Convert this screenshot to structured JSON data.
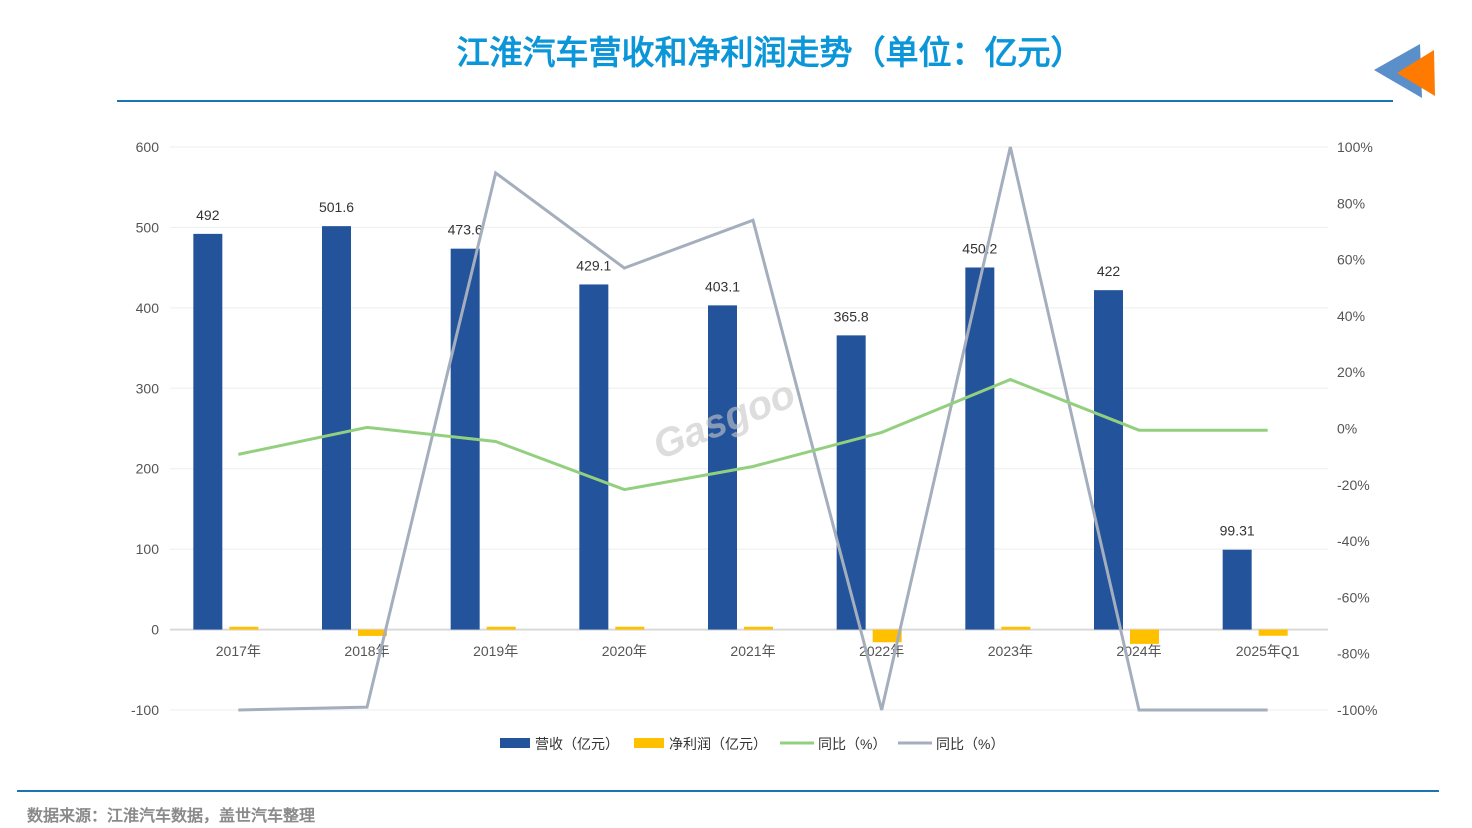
{
  "title": "江淮汽车营收和净利润走势（单位：亿元）",
  "source": "数据来源：江淮汽车数据，盖世汽车整理",
  "watermark": "盖世汽车 Gasgoo auto.gasgoo.com",
  "chart_data": {
    "type": "bar+line",
    "categories": [
      "2017年",
      "2018年",
      "2019年",
      "2020年",
      "2021年",
      "2022年",
      "2023年",
      "2024年",
      "2025年Q1"
    ],
    "y_left": {
      "ylim": [
        -100,
        600
      ],
      "ticks": [
        600,
        500,
        400,
        300,
        200,
        100,
        0,
        -100
      ]
    },
    "y_right": {
      "ylim": [
        -100,
        100
      ],
      "ticks": [
        "100%",
        "80%",
        "60%",
        "40%",
        "20%",
        "0%",
        "-20%",
        "-40%",
        "-60%",
        "-80%",
        "-100%"
      ]
    },
    "grid": true,
    "legend_position": "bottom",
    "series": [
      {
        "name": "营收（亿元）",
        "type": "bar",
        "axis": "left",
        "color": "#23539b",
        "values": [
          492,
          501.6,
          473.6,
          429.1,
          403.1,
          365.8,
          450.2,
          422,
          99.31
        ],
        "labels": [
          "492",
          "501.6",
          "473.6",
          "429.1",
          "403.1",
          "365.8",
          "450.2",
          "422",
          "99.31"
        ]
      },
      {
        "name": "净利润（亿元）",
        "type": "bar",
        "axis": "left",
        "color": "#ffc000",
        "values": [
          3.5,
          -7.9,
          3.5,
          3.5,
          3.5,
          -15.8,
          3.5,
          -17.8,
          -7.7
        ]
      },
      {
        "name": "同比（%）",
        "type": "line",
        "axis": "right",
        "color": "#92d07f",
        "values": [
          -9.2,
          0.4,
          -4.6,
          -21.7,
          -13.5,
          -1.4,
          17.4,
          -0.6,
          -0.6
        ]
      },
      {
        "name": "同比（%）",
        "type": "line",
        "axis": "right",
        "color": "#a5aebd",
        "values": [
          -100,
          -99,
          90.8,
          57,
          74,
          -100,
          100,
          -100,
          -100
        ]
      }
    ]
  }
}
